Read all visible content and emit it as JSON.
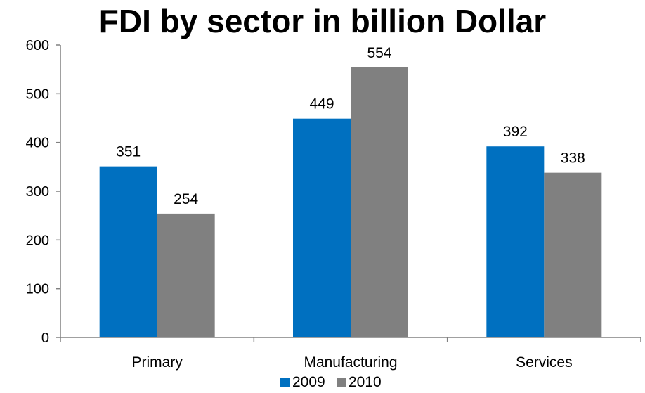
{
  "chart_data": {
    "type": "bar",
    "title": "FDI by sector in billion Dollar",
    "categories": [
      "Primary",
      "Manufacturing",
      "Services"
    ],
    "series": [
      {
        "name": "2009",
        "values": [
          351,
          449,
          392
        ],
        "color": "#0070C0"
      },
      {
        "name": "2010",
        "values": [
          254,
          554,
          338
        ],
        "color": "#808080"
      }
    ],
    "ylim": [
      0,
      600
    ],
    "yticks": [
      0,
      100,
      200,
      300,
      400,
      500,
      600
    ],
    "grid": false,
    "legend_position": "bottom",
    "data_labels": true
  }
}
